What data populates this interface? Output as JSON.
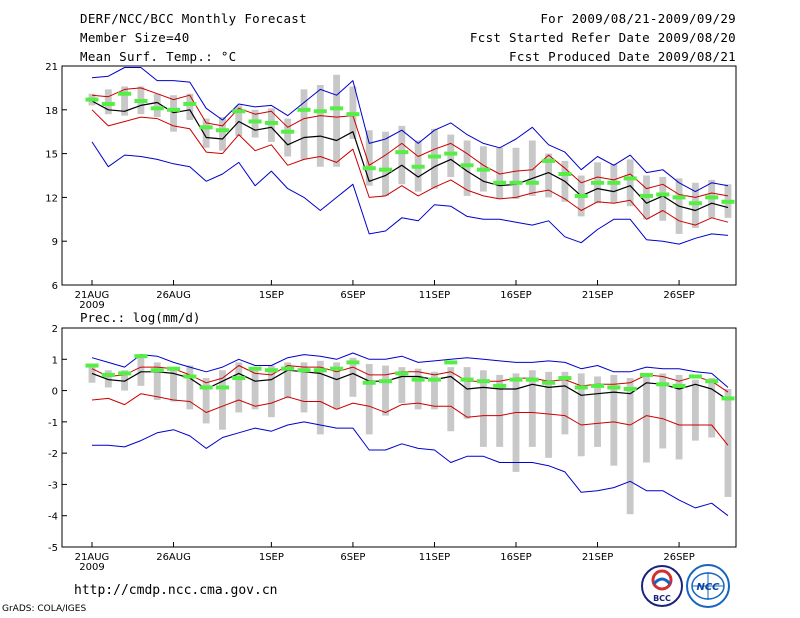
{
  "header": {
    "title": "DERF/NCC/BCC Monthly Forecast",
    "member_size": "Member Size=40",
    "variable": "Mean Surf. Temp.: °C",
    "period": "For 2009/08/21-2009/09/29",
    "started": "Fcst Started Refer Date 2009/08/20",
    "produced": "Fcst Produced Date 2009/08/21"
  },
  "footer": {
    "url": "http://cmdp.ncc.cma.gov.cn",
    "grads": "GrADS: COLA/IGES",
    "logo_bcc": "BCC",
    "logo_ncc": "NCC"
  },
  "colors": {
    "ensemble_mean": "#000000",
    "std_band": "#cc0000",
    "extreme_range": "#0000cc",
    "member_box": "#c8c8c8",
    "median_marker": "#55ee44"
  },
  "chart_data": [
    {
      "type": "line",
      "title": "Mean Surf. Temp.: °C",
      "xlabel": "",
      "ylabel": "",
      "x_tick_labels": [
        "21AUG",
        "26AUG",
        "1SEP",
        "6SEP",
        "11SEP",
        "16SEP",
        "21SEP",
        "26SEP"
      ],
      "x_tick_sublabel": "2009",
      "x_tick_days": [
        0,
        5,
        11,
        16,
        21,
        26,
        31,
        36
      ],
      "ylim": [
        6,
        21
      ],
      "y_ticks": [
        6,
        9,
        12,
        15,
        18,
        21
      ],
      "days": 40,
      "series": [
        {
          "name": "max",
          "values": [
            20.2,
            20.3,
            20.9,
            20.9,
            20.0,
            20.0,
            19.9,
            18.1,
            17.3,
            18.4,
            18.2,
            18.3,
            17.6,
            18.5,
            19.4,
            19.0,
            20.0,
            15.7,
            16.0,
            16.6,
            15.7,
            16.6,
            17.1,
            16.3,
            15.7,
            15.4,
            16.0,
            16.8,
            15.6,
            15.1,
            13.9,
            14.8,
            14.2,
            14.9,
            13.7,
            13.9,
            13.0,
            12.4,
            13.0,
            12.8
          ]
        },
        {
          "name": "upper",
          "values": [
            19.0,
            18.9,
            19.4,
            19.5,
            19.1,
            18.7,
            19.0,
            17.1,
            16.9,
            18.1,
            17.7,
            17.9,
            16.8,
            17.4,
            17.6,
            17.5,
            17.6,
            14.2,
            14.9,
            15.7,
            14.8,
            15.3,
            15.7,
            15.0,
            14.2,
            13.6,
            13.8,
            13.9,
            14.9,
            14.0,
            13.0,
            13.4,
            13.2,
            13.6,
            12.6,
            12.9,
            12.2,
            12.0,
            12.3,
            12.1
          ]
        },
        {
          "name": "mean",
          "values": [
            18.6,
            18.0,
            17.9,
            18.3,
            18.5,
            17.8,
            18.0,
            16.1,
            16.0,
            17.2,
            16.6,
            16.8,
            15.6,
            16.1,
            16.2,
            15.9,
            16.5,
            13.1,
            13.5,
            14.2,
            13.4,
            14.1,
            14.6,
            13.8,
            13.1,
            12.8,
            12.9,
            13.3,
            13.7,
            13.1,
            12.1,
            12.6,
            12.4,
            12.8,
            11.6,
            12.1,
            11.4,
            11.1,
            11.6,
            11.3
          ]
        },
        {
          "name": "lower",
          "values": [
            18.0,
            16.9,
            17.2,
            17.5,
            17.4,
            16.9,
            16.7,
            15.1,
            15.0,
            16.3,
            15.2,
            15.6,
            14.2,
            14.6,
            14.8,
            14.4,
            15.3,
            12.0,
            12.1,
            12.8,
            12.1,
            12.7,
            13.2,
            12.5,
            12.1,
            11.9,
            12.0,
            12.3,
            12.5,
            11.9,
            11.1,
            11.7,
            11.6,
            11.8,
            10.5,
            11.1,
            10.4,
            10.1,
            10.6,
            10.3
          ]
        },
        {
          "name": "min",
          "values": [
            15.8,
            14.1,
            14.9,
            14.8,
            14.6,
            14.3,
            14.1,
            13.1,
            13.6,
            14.4,
            12.8,
            13.8,
            12.6,
            12.0,
            11.1,
            12.0,
            12.9,
            9.5,
            9.7,
            10.6,
            10.4,
            11.5,
            11.4,
            10.7,
            10.5,
            10.5,
            10.3,
            10.1,
            10.4,
            9.3,
            8.9,
            9.8,
            10.5,
            10.5,
            9.1,
            9.0,
            8.8,
            9.2,
            9.5,
            9.4
          ]
        },
        {
          "name": "box_top",
          "values": [
            19.1,
            19.4,
            19.6,
            19.6,
            19.1,
            19.0,
            19.1,
            17.4,
            17.5,
            18.3,
            18.0,
            18.1,
            17.4,
            19.4,
            19.7,
            20.4,
            19.6,
            16.6,
            16.5,
            16.9,
            15.9,
            16.7,
            16.3,
            15.9,
            15.5,
            15.4,
            15.4,
            15.9,
            15.0,
            14.5,
            13.5,
            14.4,
            14.3,
            14.6,
            13.5,
            13.4,
            13.3,
            13.0,
            13.2,
            12.9
          ]
        },
        {
          "name": "box_bottom",
          "values": [
            18.3,
            17.7,
            17.6,
            17.7,
            17.5,
            16.5,
            17.3,
            15.4,
            15.2,
            16.2,
            16.1,
            15.8,
            14.8,
            14.6,
            14.1,
            14.1,
            16.0,
            12.8,
            12.1,
            12.9,
            12.4,
            12.6,
            13.4,
            12.1,
            12.4,
            11.9,
            11.9,
            12.1,
            12.0,
            11.7,
            10.7,
            11.6,
            11.6,
            11.4,
            10.5,
            10.4,
            9.5,
            9.9,
            10.6,
            10.6
          ]
        },
        {
          "name": "median",
          "values": [
            18.7,
            18.4,
            19.1,
            18.6,
            18.1,
            18.0,
            18.4,
            16.8,
            16.6,
            17.9,
            17.2,
            17.1,
            16.5,
            18.0,
            17.9,
            18.1,
            17.7,
            14.0,
            13.9,
            15.1,
            14.1,
            14.8,
            15.0,
            14.2,
            13.9,
            13.0,
            13.0,
            13.0,
            14.5,
            13.6,
            12.1,
            13.0,
            13.0,
            13.3,
            12.1,
            12.2,
            12.0,
            11.6,
            12.0,
            11.7
          ]
        }
      ]
    },
    {
      "type": "line",
      "title": "Prec.: log(mm/d)",
      "xlabel": "",
      "ylabel": "",
      "x_tick_labels": [
        "21AUG",
        "26AUG",
        "1SEP",
        "6SEP",
        "11SEP",
        "16SEP",
        "21SEP",
        "26SEP"
      ],
      "x_tick_sublabel": "2009",
      "x_tick_days": [
        0,
        5,
        11,
        16,
        21,
        26,
        31,
        36
      ],
      "ylim": [
        -5,
        2
      ],
      "y_ticks": [
        -5,
        -4,
        -3,
        -2,
        -1,
        0,
        1,
        2
      ],
      "days": 40,
      "series": [
        {
          "name": "max",
          "values": [
            1.05,
            0.9,
            0.75,
            1.15,
            1.1,
            0.9,
            0.75,
            0.6,
            0.75,
            1.0,
            0.8,
            0.8,
            1.05,
            1.15,
            1.1,
            1.0,
            1.2,
            1.0,
            1.0,
            1.1,
            0.9,
            0.95,
            1.0,
            1.05,
            1.0,
            0.95,
            0.9,
            0.9,
            0.95,
            0.9,
            0.7,
            0.8,
            0.6,
            0.6,
            0.75,
            0.7,
            0.7,
            0.6,
            0.55,
            0.1
          ]
        },
        {
          "name": "upper",
          "values": [
            0.7,
            0.45,
            0.5,
            0.75,
            0.75,
            0.7,
            0.5,
            0.25,
            0.4,
            0.8,
            0.55,
            0.5,
            0.8,
            0.75,
            0.75,
            0.6,
            0.75,
            0.5,
            0.5,
            0.6,
            0.6,
            0.5,
            0.6,
            0.3,
            0.3,
            0.3,
            0.4,
            0.4,
            0.3,
            0.35,
            0.15,
            0.2,
            0.2,
            0.25,
            0.5,
            0.45,
            0.3,
            0.45,
            0.3,
            -0.05
          ]
        },
        {
          "name": "mean",
          "values": [
            0.55,
            0.35,
            0.3,
            0.6,
            0.6,
            0.55,
            0.4,
            0.05,
            0.3,
            0.55,
            0.3,
            0.35,
            0.65,
            0.6,
            0.55,
            0.35,
            0.55,
            0.3,
            0.3,
            0.45,
            0.45,
            0.35,
            0.45,
            0.05,
            0.1,
            0.05,
            0.05,
            0.2,
            0.1,
            0.15,
            -0.15,
            -0.1,
            -0.05,
            -0.1,
            0.25,
            0.2,
            0.05,
            0.2,
            0.05,
            -0.3
          ]
        },
        {
          "name": "lower",
          "values": [
            -0.3,
            -0.25,
            -0.45,
            -0.1,
            -0.2,
            -0.3,
            -0.35,
            -0.7,
            -0.5,
            -0.3,
            -0.5,
            -0.4,
            -0.2,
            -0.35,
            -0.35,
            -0.6,
            -0.4,
            -0.5,
            -0.7,
            -0.45,
            -0.4,
            -0.5,
            -0.5,
            -0.85,
            -0.8,
            -0.8,
            -0.7,
            -0.7,
            -0.75,
            -0.8,
            -1.1,
            -1.05,
            -1.0,
            -1.1,
            -0.8,
            -0.9,
            -1.1,
            -1.1,
            -1.1,
            -1.75
          ]
        },
        {
          "name": "min",
          "values": [
            -1.75,
            -1.75,
            -1.8,
            -1.6,
            -1.35,
            -1.25,
            -1.45,
            -1.85,
            -1.5,
            -1.35,
            -1.2,
            -1.3,
            -1.1,
            -1.0,
            -1.1,
            -1.2,
            -1.2,
            -1.9,
            -1.9,
            -1.7,
            -1.85,
            -1.9,
            -2.3,
            -2.1,
            -2.1,
            -2.3,
            -2.3,
            -2.3,
            -2.4,
            -2.6,
            -3.25,
            -3.2,
            -3.1,
            -2.9,
            -3.2,
            -3.2,
            -3.5,
            -3.75,
            -3.6,
            -4.0
          ]
        },
        {
          "name": "box_top",
          "values": [
            0.85,
            0.65,
            0.65,
            1.15,
            0.9,
            0.75,
            0.8,
            0.4,
            0.65,
            0.9,
            0.75,
            0.8,
            0.9,
            0.9,
            0.95,
            0.9,
            1.05,
            0.85,
            0.8,
            0.75,
            0.7,
            0.6,
            0.75,
            0.75,
            0.65,
            0.5,
            0.55,
            0.65,
            0.6,
            0.6,
            0.55,
            0.45,
            0.5,
            0.4,
            0.55,
            0.55,
            0.5,
            0.35,
            0.4,
            0.05
          ]
        },
        {
          "name": "box_bottom",
          "values": [
            0.25,
            0.1,
            0.0,
            0.15,
            -0.3,
            -0.35,
            -0.6,
            -1.05,
            -1.25,
            -0.7,
            -0.6,
            -0.85,
            -0.25,
            -0.7,
            -1.4,
            -0.6,
            -0.2,
            -1.4,
            -0.8,
            -0.4,
            -0.6,
            -0.6,
            -1.3,
            -0.9,
            -1.8,
            -1.8,
            -2.6,
            -1.8,
            -2.15,
            -1.4,
            -2.1,
            -1.8,
            -2.4,
            -3.95,
            -2.3,
            -1.85,
            -2.2,
            -1.6,
            -1.5,
            -3.4
          ]
        },
        {
          "name": "median",
          "values": [
            0.8,
            0.5,
            0.55,
            1.1,
            0.65,
            0.7,
            0.45,
            0.1,
            0.1,
            0.4,
            0.7,
            0.65,
            0.7,
            0.65,
            0.65,
            0.7,
            0.9,
            0.25,
            0.3,
            0.55,
            0.35,
            0.35,
            0.9,
            0.35,
            0.3,
            0.15,
            0.35,
            0.35,
            0.25,
            0.4,
            0.1,
            0.15,
            0.1,
            0.05,
            0.5,
            0.2,
            0.15,
            0.45,
            0.3,
            -0.25
          ]
        }
      ]
    }
  ]
}
